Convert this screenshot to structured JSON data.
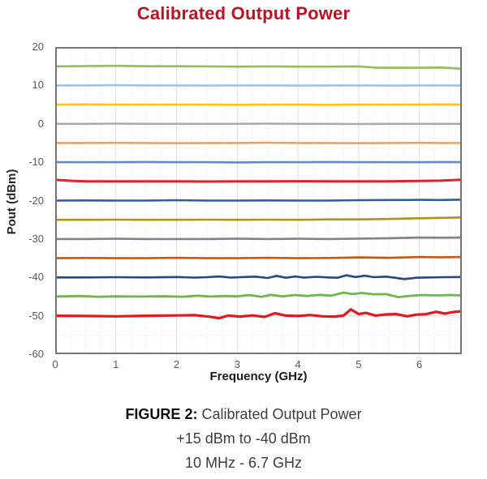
{
  "title": "Calibrated Output Power",
  "title_color": "#B91423",
  "caption": {
    "label": "FIGURE 2:",
    "line1": " Calibrated Output Power",
    "line2": "+15 dBm to -40 dBm",
    "line3": "10 MHz - 6.7 GHz"
  },
  "chart_data": {
    "type": "line",
    "title": "Calibrated Output Power",
    "xlabel": "Frequency (GHz)",
    "ylabel": "Pout (dBm)",
    "xlim": [
      0,
      6.7
    ],
    "ylim": [
      -60,
      20
    ],
    "x_ticks": [
      0,
      1,
      2,
      3,
      4,
      5,
      6
    ],
    "y_ticks": [
      20,
      10,
      0,
      -10,
      -20,
      -30,
      -40,
      -50,
      -60
    ],
    "grid": {
      "x_minor_step": 0.25,
      "y_minor_step": 5,
      "minor_color": "#e2e2e2",
      "major_color": "#dcdcdc",
      "border_color": "#757575"
    },
    "legend": "none",
    "series": [
      {
        "name": "+15 dBm",
        "level": 15,
        "color": "#8FBF5A",
        "width": 2.6,
        "points": [
          [
            0,
            14.95
          ],
          [
            0.5,
            15.05
          ],
          [
            1,
            15.1
          ],
          [
            1.5,
            15.0
          ],
          [
            2,
            15.0
          ],
          [
            2.5,
            14.95
          ],
          [
            3,
            14.9
          ],
          [
            3.5,
            14.95
          ],
          [
            4,
            14.9
          ],
          [
            4.5,
            14.9
          ],
          [
            5,
            14.95
          ],
          [
            5.3,
            14.6
          ],
          [
            6,
            14.6
          ],
          [
            6.35,
            14.65
          ],
          [
            6.7,
            14.35
          ]
        ]
      },
      {
        "name": "+10 dBm",
        "level": 10,
        "color": "#9DC3E6",
        "width": 2.6,
        "points": [
          [
            0,
            10
          ],
          [
            0.5,
            10
          ],
          [
            1,
            10.05
          ],
          [
            1.5,
            10
          ],
          [
            2,
            10
          ],
          [
            2.5,
            9.95
          ],
          [
            3,
            10
          ],
          [
            3.5,
            10
          ],
          [
            4,
            9.95
          ],
          [
            4.5,
            10
          ],
          [
            5,
            10
          ],
          [
            5.5,
            9.95
          ],
          [
            6,
            10
          ],
          [
            6.35,
            10
          ],
          [
            6.7,
            9.95
          ]
        ]
      },
      {
        "name": "+5 dBm",
        "level": 5,
        "color": "#FFC410",
        "width": 2.6,
        "points": [
          [
            0,
            5
          ],
          [
            0.5,
            5.05
          ],
          [
            1,
            5
          ],
          [
            1.5,
            5
          ],
          [
            2,
            5
          ],
          [
            2.5,
            5
          ],
          [
            3,
            4.95
          ],
          [
            3.5,
            5
          ],
          [
            4,
            5
          ],
          [
            4.5,
            4.95
          ],
          [
            5,
            5
          ],
          [
            5.5,
            5
          ],
          [
            6,
            5
          ],
          [
            6.35,
            5.05
          ],
          [
            6.7,
            5
          ]
        ]
      },
      {
        "name": "0 dBm",
        "level": 0,
        "color": "#ABABAB",
        "width": 2.6,
        "points": [
          [
            0,
            0
          ],
          [
            0.5,
            0
          ],
          [
            1,
            0.05
          ],
          [
            1.5,
            0
          ],
          [
            2,
            0
          ],
          [
            2.5,
            0
          ],
          [
            3,
            0
          ],
          [
            3.5,
            0.05
          ],
          [
            4,
            0
          ],
          [
            4.5,
            0
          ],
          [
            5,
            -0.05
          ],
          [
            5.5,
            0
          ],
          [
            6,
            0
          ],
          [
            6.35,
            0
          ],
          [
            6.7,
            0
          ]
        ]
      },
      {
        "name": "-5 dBm",
        "level": -5,
        "color": "#F1A05A",
        "width": 2.6,
        "points": [
          [
            0,
            -5
          ],
          [
            0.5,
            -5
          ],
          [
            1,
            -4.95
          ],
          [
            1.5,
            -5
          ],
          [
            2,
            -5.05
          ],
          [
            2.5,
            -5
          ],
          [
            3,
            -5
          ],
          [
            3.5,
            -4.9
          ],
          [
            4,
            -5
          ],
          [
            4.5,
            -5
          ],
          [
            5,
            -5.05
          ],
          [
            5.5,
            -5
          ],
          [
            6,
            -4.95
          ],
          [
            6.35,
            -5
          ],
          [
            6.7,
            -5
          ]
        ]
      },
      {
        "name": "-10 dBm",
        "level": -10,
        "color": "#6089C9",
        "width": 2.6,
        "points": [
          [
            0,
            -10
          ],
          [
            0.5,
            -10
          ],
          [
            1,
            -10
          ],
          [
            1.5,
            -9.95
          ],
          [
            2,
            -10
          ],
          [
            2.5,
            -10
          ],
          [
            3,
            -10.05
          ],
          [
            3.5,
            -10
          ],
          [
            4,
            -10
          ],
          [
            4.5,
            -9.95
          ],
          [
            5,
            -10
          ],
          [
            5.5,
            -10
          ],
          [
            6,
            -10
          ],
          [
            6.35,
            -9.95
          ],
          [
            6.7,
            -10
          ]
        ]
      },
      {
        "name": "-15 dBm",
        "level": -15,
        "color": "#E32226",
        "width": 3,
        "points": [
          [
            0,
            -14.6
          ],
          [
            0.3,
            -14.9
          ],
          [
            0.5,
            -15
          ],
          [
            1,
            -15
          ],
          [
            1.5,
            -15
          ],
          [
            2,
            -15
          ],
          [
            2.5,
            -15.05
          ],
          [
            3,
            -15
          ],
          [
            3.5,
            -15
          ],
          [
            4,
            -14.95
          ],
          [
            4.5,
            -15
          ],
          [
            5,
            -15
          ],
          [
            5.5,
            -15
          ],
          [
            6,
            -14.9
          ],
          [
            6.35,
            -14.8
          ],
          [
            6.7,
            -14.55
          ]
        ]
      },
      {
        "name": "-20 dBm",
        "level": -20,
        "color": "#2E5F9C",
        "width": 2.6,
        "points": [
          [
            0,
            -20
          ],
          [
            0.5,
            -19.95
          ],
          [
            1,
            -20
          ],
          [
            1.5,
            -20
          ],
          [
            2,
            -19.9
          ],
          [
            2.5,
            -20
          ],
          [
            3,
            -20
          ],
          [
            3.5,
            -19.95
          ],
          [
            4,
            -20
          ],
          [
            4.5,
            -20
          ],
          [
            5,
            -19.9
          ],
          [
            5.5,
            -19.85
          ],
          [
            6,
            -19.8
          ],
          [
            6.35,
            -19.85
          ],
          [
            6.7,
            -19.75
          ]
        ]
      },
      {
        "name": "-25 dBm",
        "level": -25,
        "color": "#B2920E",
        "width": 2.6,
        "points": [
          [
            0,
            -25
          ],
          [
            0.5,
            -25
          ],
          [
            1,
            -24.95
          ],
          [
            1.5,
            -25
          ],
          [
            2,
            -25
          ],
          [
            2.5,
            -24.95
          ],
          [
            3,
            -25
          ],
          [
            3.5,
            -24.95
          ],
          [
            4,
            -25
          ],
          [
            4.5,
            -24.9
          ],
          [
            5,
            -24.9
          ],
          [
            5.5,
            -24.8
          ],
          [
            6,
            -24.6
          ],
          [
            6.35,
            -24.5
          ],
          [
            6.7,
            -24.4
          ]
        ]
      },
      {
        "name": "-30 dBm",
        "level": -30,
        "color": "#828282",
        "width": 2.6,
        "points": [
          [
            0,
            -30
          ],
          [
            0.5,
            -30
          ],
          [
            1,
            -29.95
          ],
          [
            1.5,
            -30
          ],
          [
            2,
            -30
          ],
          [
            2.5,
            -30
          ],
          [
            3,
            -29.9
          ],
          [
            3.5,
            -30
          ],
          [
            4,
            -29.95
          ],
          [
            4.5,
            -30
          ],
          [
            5,
            -29.9
          ],
          [
            5.5,
            -29.8
          ],
          [
            6,
            -29.6
          ],
          [
            6.35,
            -29.65
          ],
          [
            6.7,
            -29.6
          ]
        ]
      },
      {
        "name": "-35 dBm",
        "level": -35,
        "color": "#C45911",
        "width": 2.6,
        "points": [
          [
            0,
            -35
          ],
          [
            0.5,
            -34.95
          ],
          [
            1,
            -35
          ],
          [
            1.5,
            -35
          ],
          [
            2,
            -34.9
          ],
          [
            2.5,
            -35
          ],
          [
            3,
            -35
          ],
          [
            3.5,
            -34.9
          ],
          [
            4,
            -35
          ],
          [
            4.5,
            -34.95
          ],
          [
            5,
            -34.8
          ],
          [
            5.5,
            -34.9
          ],
          [
            6,
            -34.7
          ],
          [
            6.35,
            -34.75
          ],
          [
            6.7,
            -34.7
          ]
        ]
      },
      {
        "name": "-40 dBm",
        "level": -40,
        "color": "#27477E",
        "width": 2.6,
        "points": [
          [
            0,
            -40
          ],
          [
            0.5,
            -40
          ],
          [
            1,
            -39.95
          ],
          [
            1.5,
            -40
          ],
          [
            2,
            -39.9
          ],
          [
            2.3,
            -40.05
          ],
          [
            2.5,
            -39.95
          ],
          [
            2.7,
            -39.75
          ],
          [
            2.9,
            -40.05
          ],
          [
            3.1,
            -39.9
          ],
          [
            3.3,
            -39.8
          ],
          [
            3.5,
            -40.15
          ],
          [
            3.65,
            -39.6
          ],
          [
            3.8,
            -40.1
          ],
          [
            3.95,
            -39.75
          ],
          [
            4.1,
            -40.05
          ],
          [
            4.3,
            -39.85
          ],
          [
            4.5,
            -40
          ],
          [
            4.65,
            -40.1
          ],
          [
            4.8,
            -39.45
          ],
          [
            4.95,
            -39.9
          ],
          [
            5.1,
            -39.55
          ],
          [
            5.25,
            -39.95
          ],
          [
            5.45,
            -39.8
          ],
          [
            5.6,
            -40.1
          ],
          [
            5.75,
            -40.45
          ],
          [
            5.95,
            -40.1
          ],
          [
            6.15,
            -40
          ],
          [
            6.4,
            -39.95
          ],
          [
            6.7,
            -39.9
          ]
        ]
      },
      {
        "name": "-45 dBm",
        "level": -45,
        "color": "#72B54A",
        "width": 2.8,
        "points": [
          [
            0,
            -45
          ],
          [
            0.4,
            -44.85
          ],
          [
            0.7,
            -45.05
          ],
          [
            1,
            -44.95
          ],
          [
            1.4,
            -45
          ],
          [
            1.8,
            -44.9
          ],
          [
            2.1,
            -45.05
          ],
          [
            2.35,
            -44.75
          ],
          [
            2.55,
            -45
          ],
          [
            2.8,
            -44.85
          ],
          [
            3,
            -44.95
          ],
          [
            3.2,
            -44.6
          ],
          [
            3.4,
            -45.05
          ],
          [
            3.55,
            -44.55
          ],
          [
            3.75,
            -44.95
          ],
          [
            3.95,
            -44.6
          ],
          [
            4.15,
            -44.85
          ],
          [
            4.35,
            -44.55
          ],
          [
            4.55,
            -44.75
          ],
          [
            4.75,
            -43.95
          ],
          [
            4.9,
            -44.35
          ],
          [
            5.05,
            -44.05
          ],
          [
            5.25,
            -44.4
          ],
          [
            5.45,
            -44.35
          ],
          [
            5.65,
            -45.15
          ],
          [
            5.85,
            -44.8
          ],
          [
            6.05,
            -44.6
          ],
          [
            6.3,
            -44.7
          ],
          [
            6.5,
            -44.6
          ],
          [
            6.7,
            -44.7
          ]
        ]
      },
      {
        "name": "-50 dBm",
        "level": -50,
        "color": "#E4191F",
        "width": 3.2,
        "points": [
          [
            0,
            -50
          ],
          [
            0.5,
            -50.05
          ],
          [
            1,
            -50.15
          ],
          [
            1.5,
            -50
          ],
          [
            2,
            -49.9
          ],
          [
            2.3,
            -49.85
          ],
          [
            2.55,
            -50.25
          ],
          [
            2.7,
            -50.65
          ],
          [
            2.85,
            -49.95
          ],
          [
            3.05,
            -50.2
          ],
          [
            3.25,
            -49.9
          ],
          [
            3.45,
            -50.3
          ],
          [
            3.62,
            -49.35
          ],
          [
            3.8,
            -49.95
          ],
          [
            4,
            -50.05
          ],
          [
            4.2,
            -49.8
          ],
          [
            4.4,
            -50.15
          ],
          [
            4.6,
            -50.2
          ],
          [
            4.75,
            -49.95
          ],
          [
            4.87,
            -48.35
          ],
          [
            5,
            -49.55
          ],
          [
            5.12,
            -49.25
          ],
          [
            5.28,
            -49.95
          ],
          [
            5.45,
            -49.65
          ],
          [
            5.62,
            -49.55
          ],
          [
            5.8,
            -50.15
          ],
          [
            5.95,
            -49.7
          ],
          [
            6.1,
            -49.6
          ],
          [
            6.28,
            -48.95
          ],
          [
            6.42,
            -49.45
          ],
          [
            6.55,
            -49.05
          ],
          [
            6.7,
            -48.8
          ]
        ]
      }
    ]
  }
}
